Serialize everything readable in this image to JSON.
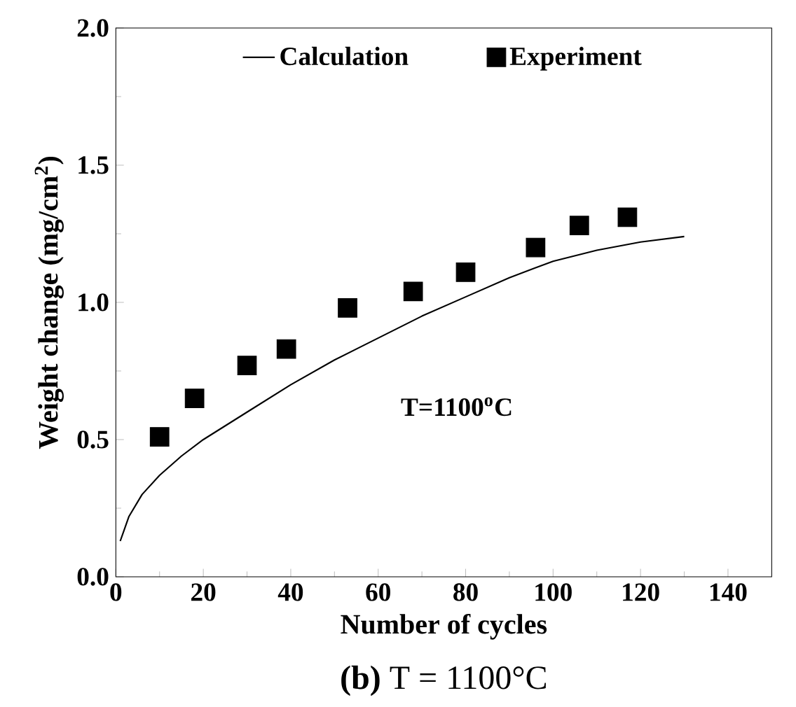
{
  "chart_data": {
    "type": "line",
    "xlabel": "Number of cycles",
    "ylabel": "Weight change (mg/cm$^{2}$)",
    "xlim": [
      0,
      150
    ],
    "ylim": [
      0,
      2.0
    ],
    "xticks": [
      0,
      20,
      40,
      60,
      80,
      100,
      120,
      140
    ],
    "yticks": [
      {
        "value": 0,
        "label": "0.0"
      },
      0.5,
      {
        "value": 1,
        "label": "1.0"
      },
      1.5,
      {
        "value": 2,
        "label": "2.0"
      }
    ],
    "legend": "top",
    "grid": false,
    "series": [
      {
        "name": "Calculation",
        "color": "#000000",
        "marker": "none",
        "line_style": "solid",
        "x": [
          1,
          3,
          6,
          10,
          15,
          20,
          30,
          40,
          50,
          60,
          70,
          80,
          90,
          100,
          110,
          120,
          130
        ],
        "values": [
          0.13,
          0.22,
          0.3,
          0.37,
          0.44,
          0.5,
          0.6,
          0.7,
          0.79,
          0.87,
          0.95,
          1.02,
          1.09,
          1.15,
          1.19,
          1.22,
          1.24
        ]
      },
      {
        "name": "Experiment",
        "type": "scatter",
        "color": "#000000",
        "marker": "square",
        "x": [
          10,
          18,
          30,
          39,
          53,
          68,
          80,
          96,
          106,
          117
        ],
        "values": [
          0.51,
          0.65,
          0.77,
          0.83,
          0.98,
          1.04,
          1.11,
          1.2,
          1.28,
          1.31
        ]
      }
    ],
    "annotations": [
      "T=1100$^{o}$C",
      "**(b)** T = 1100°C"
    ]
  }
}
